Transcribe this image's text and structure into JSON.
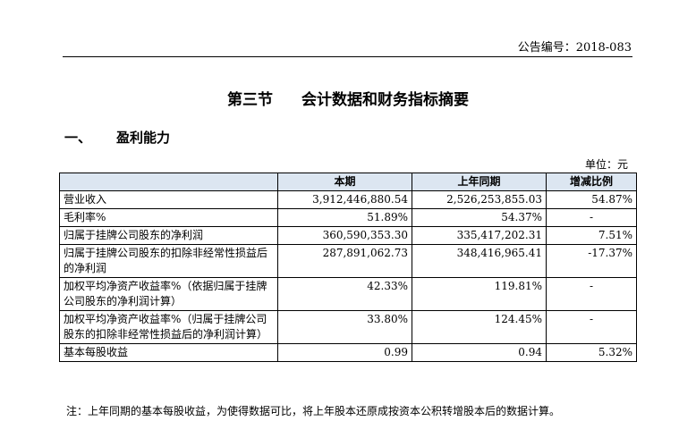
{
  "header": {
    "doc_number": "公告编号：2018-083"
  },
  "section": {
    "number": "第三节",
    "title": "会计数据和财务指标摘要"
  },
  "subsection": {
    "number": "一、",
    "title": "盈利能力"
  },
  "unit": "单位：元",
  "table": {
    "headers": [
      "",
      "本期",
      "上年同期",
      "增减比例"
    ],
    "rows": [
      [
        "营业收入",
        "3,912,446,880.54",
        "2,526,253,855.03",
        "54.87%"
      ],
      [
        "毛利率%",
        "51.89%",
        "54.37%",
        "-"
      ],
      [
        "归属于挂牌公司股东的净利润",
        "360,590,353.30",
        "335,417,202.31",
        "7.51%"
      ],
      [
        "归属于挂牌公司股东的扣除非经常性损益后的净利润",
        "287,891,062.73",
        "348,416,965.41",
        "-17.37%"
      ],
      [
        "加权平均净资产收益率%（依据归属于挂牌公司股东的净利润计算）",
        "42.33%",
        "119.81%",
        "-"
      ],
      [
        "加权平均净资产收益率%（归属于挂牌公司股东的扣除非经常性损益后的净利润计算）",
        "33.80%",
        "124.45%",
        "-"
      ],
      [
        "基本每股收益",
        "0.99",
        "0.94",
        "5.32%"
      ]
    ]
  },
  "note": "注：上年同期的基本每股收益，为使得数据可比，将上年股本还原成按资本公积转增股本后的数据计算。"
}
